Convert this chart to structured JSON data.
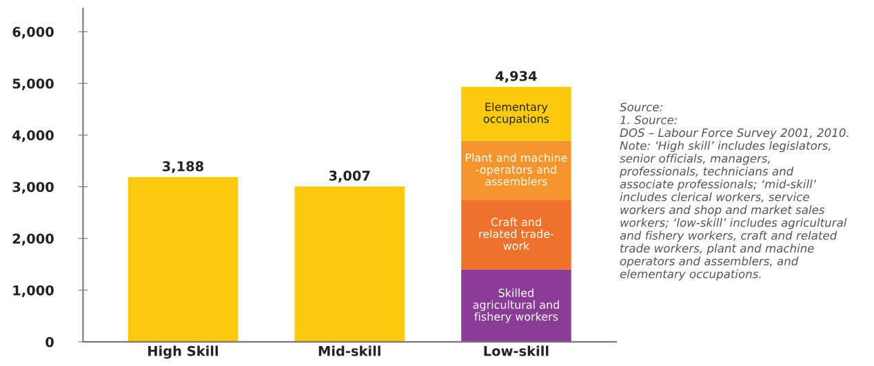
{
  "chart_data": {
    "type": "bar",
    "stacked": true,
    "categories": [
      "High Skill",
      "Mid-skill",
      "Low-skill"
    ],
    "series": [
      {
        "color": "#fdc90e",
        "values": [
          3188,
          3007,
          null
        ]
      },
      {
        "name": "Skilled\nagricultural and\nfishery workers",
        "color": "#8b3c96",
        "values": [
          null,
          null,
          1400
        ]
      },
      {
        "name": "Craft and\nrelated trade-\nwork",
        "color": "#f0712b",
        "values": [
          null,
          null,
          1340
        ]
      },
      {
        "name": "Plant and machine\n-operators and\nassemblers",
        "color": "#f5952c",
        "values": [
          null,
          null,
          1150
        ]
      },
      {
        "name": "Elementary\noccupations",
        "color": "#fdc90e",
        "values": [
          null,
          null,
          1044
        ]
      }
    ],
    "totals": [
      "3,188",
      "3,007",
      "4,934"
    ],
    "ylim": [
      0,
      6450
    ],
    "yticks": [
      0,
      {
        "value": 1000,
        "label": "1,000"
      },
      {
        "value": 2000,
        "label": "2,000"
      },
      {
        "value": 3000,
        "label": "3,000"
      },
      {
        "value": 4000,
        "label": "4,000"
      },
      {
        "value": 5000,
        "label": "5,000"
      },
      {
        "value": 6000,
        "label": "6,000"
      }
    ],
    "grid": false,
    "legend": false,
    "annotations": [
      "Source:\n1. Source:\nDOS – Labour Force Survey 2001, 2010.\nNote: ‘High skill’ includes legislators,\nsenior officials, managers,\nprofessionals, technicians and\nassociate professionals; ‘mid-skill’\nincludes clerical workers, service\nworkers and shop and market sales\nworkers; ‘low-skill’ includes agricultural\nand fishery workers, craft and related\ntrade workers, plant and machine\noperators and assemblers, and\nelementary occupations."
    ]
  }
}
